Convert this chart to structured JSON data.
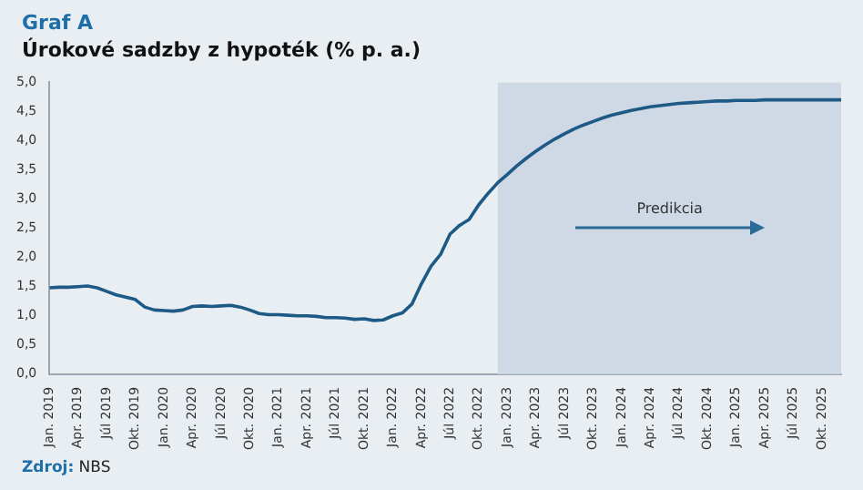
{
  "chart_data": {
    "type": "line",
    "title": "Graf A",
    "subtitle": "Úrokové sadzby z hypoték (% p. a.)",
    "x": [
      "2019-01",
      "2019-02",
      "2019-03",
      "2019-04",
      "2019-05",
      "2019-06",
      "2019-07",
      "2019-08",
      "2019-09",
      "2019-10",
      "2019-11",
      "2019-12",
      "2020-01",
      "2020-02",
      "2020-03",
      "2020-04",
      "2020-05",
      "2020-06",
      "2020-07",
      "2020-08",
      "2020-09",
      "2020-10",
      "2020-11",
      "2020-12",
      "2021-01",
      "2021-02",
      "2021-03",
      "2021-04",
      "2021-05",
      "2021-06",
      "2021-07",
      "2021-08",
      "2021-09",
      "2021-10",
      "2021-11",
      "2021-12",
      "2022-01",
      "2022-02",
      "2022-03",
      "2022-04",
      "2022-05",
      "2022-06",
      "2022-07",
      "2022-08",
      "2022-09",
      "2022-10",
      "2022-11",
      "2022-12",
      "2023-01",
      "2023-02",
      "2023-03",
      "2023-04",
      "2023-05",
      "2023-06",
      "2023-07",
      "2023-08",
      "2023-09",
      "2023-10",
      "2023-11",
      "2023-12",
      "2024-01",
      "2024-02",
      "2024-03",
      "2024-04",
      "2024-05",
      "2024-06",
      "2024-07",
      "2024-08",
      "2024-09",
      "2024-10",
      "2024-11",
      "2024-12",
      "2025-01",
      "2025-02",
      "2025-03",
      "2025-04",
      "2025-05",
      "2025-06",
      "2025-07",
      "2025-08",
      "2025-09",
      "2025-10",
      "2025-11",
      "2025-12"
    ],
    "series": [
      {
        "color": "#1d5a86",
        "values": [
          1.48,
          1.49,
          1.49,
          1.5,
          1.51,
          1.48,
          1.42,
          1.36,
          1.32,
          1.28,
          1.15,
          1.1,
          1.09,
          1.08,
          1.1,
          1.16,
          1.17,
          1.16,
          1.17,
          1.18,
          1.15,
          1.1,
          1.04,
          1.02,
          1.02,
          1.01,
          1.0,
          1.0,
          0.99,
          0.97,
          0.97,
          0.96,
          0.94,
          0.95,
          0.92,
          0.93,
          1.0,
          1.05,
          1.2,
          1.55,
          1.85,
          2.05,
          2.4,
          2.55,
          2.65,
          2.9,
          3.1,
          3.28,
          3.42,
          3.57,
          3.7,
          3.82,
          3.93,
          4.03,
          4.12,
          4.2,
          4.27,
          4.33,
          4.39,
          4.44,
          4.48,
          4.52,
          4.55,
          4.58,
          4.6,
          4.62,
          4.64,
          4.65,
          4.66,
          4.67,
          4.68,
          4.68,
          4.69,
          4.69,
          4.69,
          4.7,
          4.7,
          4.7,
          4.7,
          4.7,
          4.7,
          4.7,
          4.7,
          4.7
        ]
      }
    ],
    "xlim": [
      "2019-01",
      "2025-12"
    ],
    "xticks": [
      {
        "value": "2019-01",
        "label": "Jan. 2019"
      },
      {
        "value": "2019-04",
        "label": "Apr. 2019"
      },
      {
        "value": "2019-07",
        "label": "Júl 2019"
      },
      {
        "value": "2019-10",
        "label": "Okt. 2019"
      },
      {
        "value": "2020-01",
        "label": "Jan. 2020"
      },
      {
        "value": "2020-04",
        "label": "Apr. 2020"
      },
      {
        "value": "2020-07",
        "label": "Júl 2020"
      },
      {
        "value": "2020-10",
        "label": "Okt. 2020"
      },
      {
        "value": "2021-01",
        "label": "Jan. 2021"
      },
      {
        "value": "2021-04",
        "label": "Apr. 2021"
      },
      {
        "value": "2021-07",
        "label": "Júl 2021"
      },
      {
        "value": "2021-10",
        "label": "Okt. 2021"
      },
      {
        "value": "2022-01",
        "label": "Jan. 2022"
      },
      {
        "value": "2022-04",
        "label": "Apr. 2022"
      },
      {
        "value": "2022-07",
        "label": "Júl 2022"
      },
      {
        "value": "2022-10",
        "label": "Okt. 2022"
      },
      {
        "value": "2023-01",
        "label": "Jan. 2023"
      },
      {
        "value": "2023-04",
        "label": "Apr. 2023"
      },
      {
        "value": "2023-07",
        "label": "Júl 2023"
      },
      {
        "value": "2023-10",
        "label": "Okt. 2023"
      },
      {
        "value": "2024-01",
        "label": "Jan. 2024"
      },
      {
        "value": "2024-04",
        "label": "Apr. 2024"
      },
      {
        "value": "2024-07",
        "label": "Júl 2024"
      },
      {
        "value": "2024-10",
        "label": "Okt. 2024"
      },
      {
        "value": "2025-01",
        "label": "Jan. 2025"
      },
      {
        "value": "2025-04",
        "label": "Apr. 2025"
      },
      {
        "value": "2025-07",
        "label": "Júl 2025"
      },
      {
        "value": "2025-10",
        "label": "Okt. 2025"
      }
    ],
    "ylim": [
      0,
      5
    ],
    "yticks": [
      {
        "value": 0,
        "label": "0,0"
      },
      {
        "value": 0.5,
        "label": "0,5"
      },
      {
        "value": 1,
        "label": "1,0"
      },
      {
        "value": 1.5,
        "label": "1,5"
      },
      {
        "value": 2,
        "label": "2,0"
      },
      {
        "value": 2.5,
        "label": "2,5"
      },
      {
        "value": 3,
        "label": "3,0"
      },
      {
        "value": 3.5,
        "label": "3,5"
      },
      {
        "value": 4,
        "label": "4,0"
      },
      {
        "value": 4.5,
        "label": "4,5"
      },
      {
        "value": 5,
        "label": "5,0"
      }
    ],
    "bands": [
      {
        "axis": "x",
        "from": "2022-12",
        "to": "2025-12",
        "color": "#cfd9e6"
      }
    ],
    "annotations": [
      "Predikcia",
      "Zdroj: NBS"
    ],
    "grid": false,
    "legend": false,
    "marker": "none",
    "line_style": "solid"
  }
}
